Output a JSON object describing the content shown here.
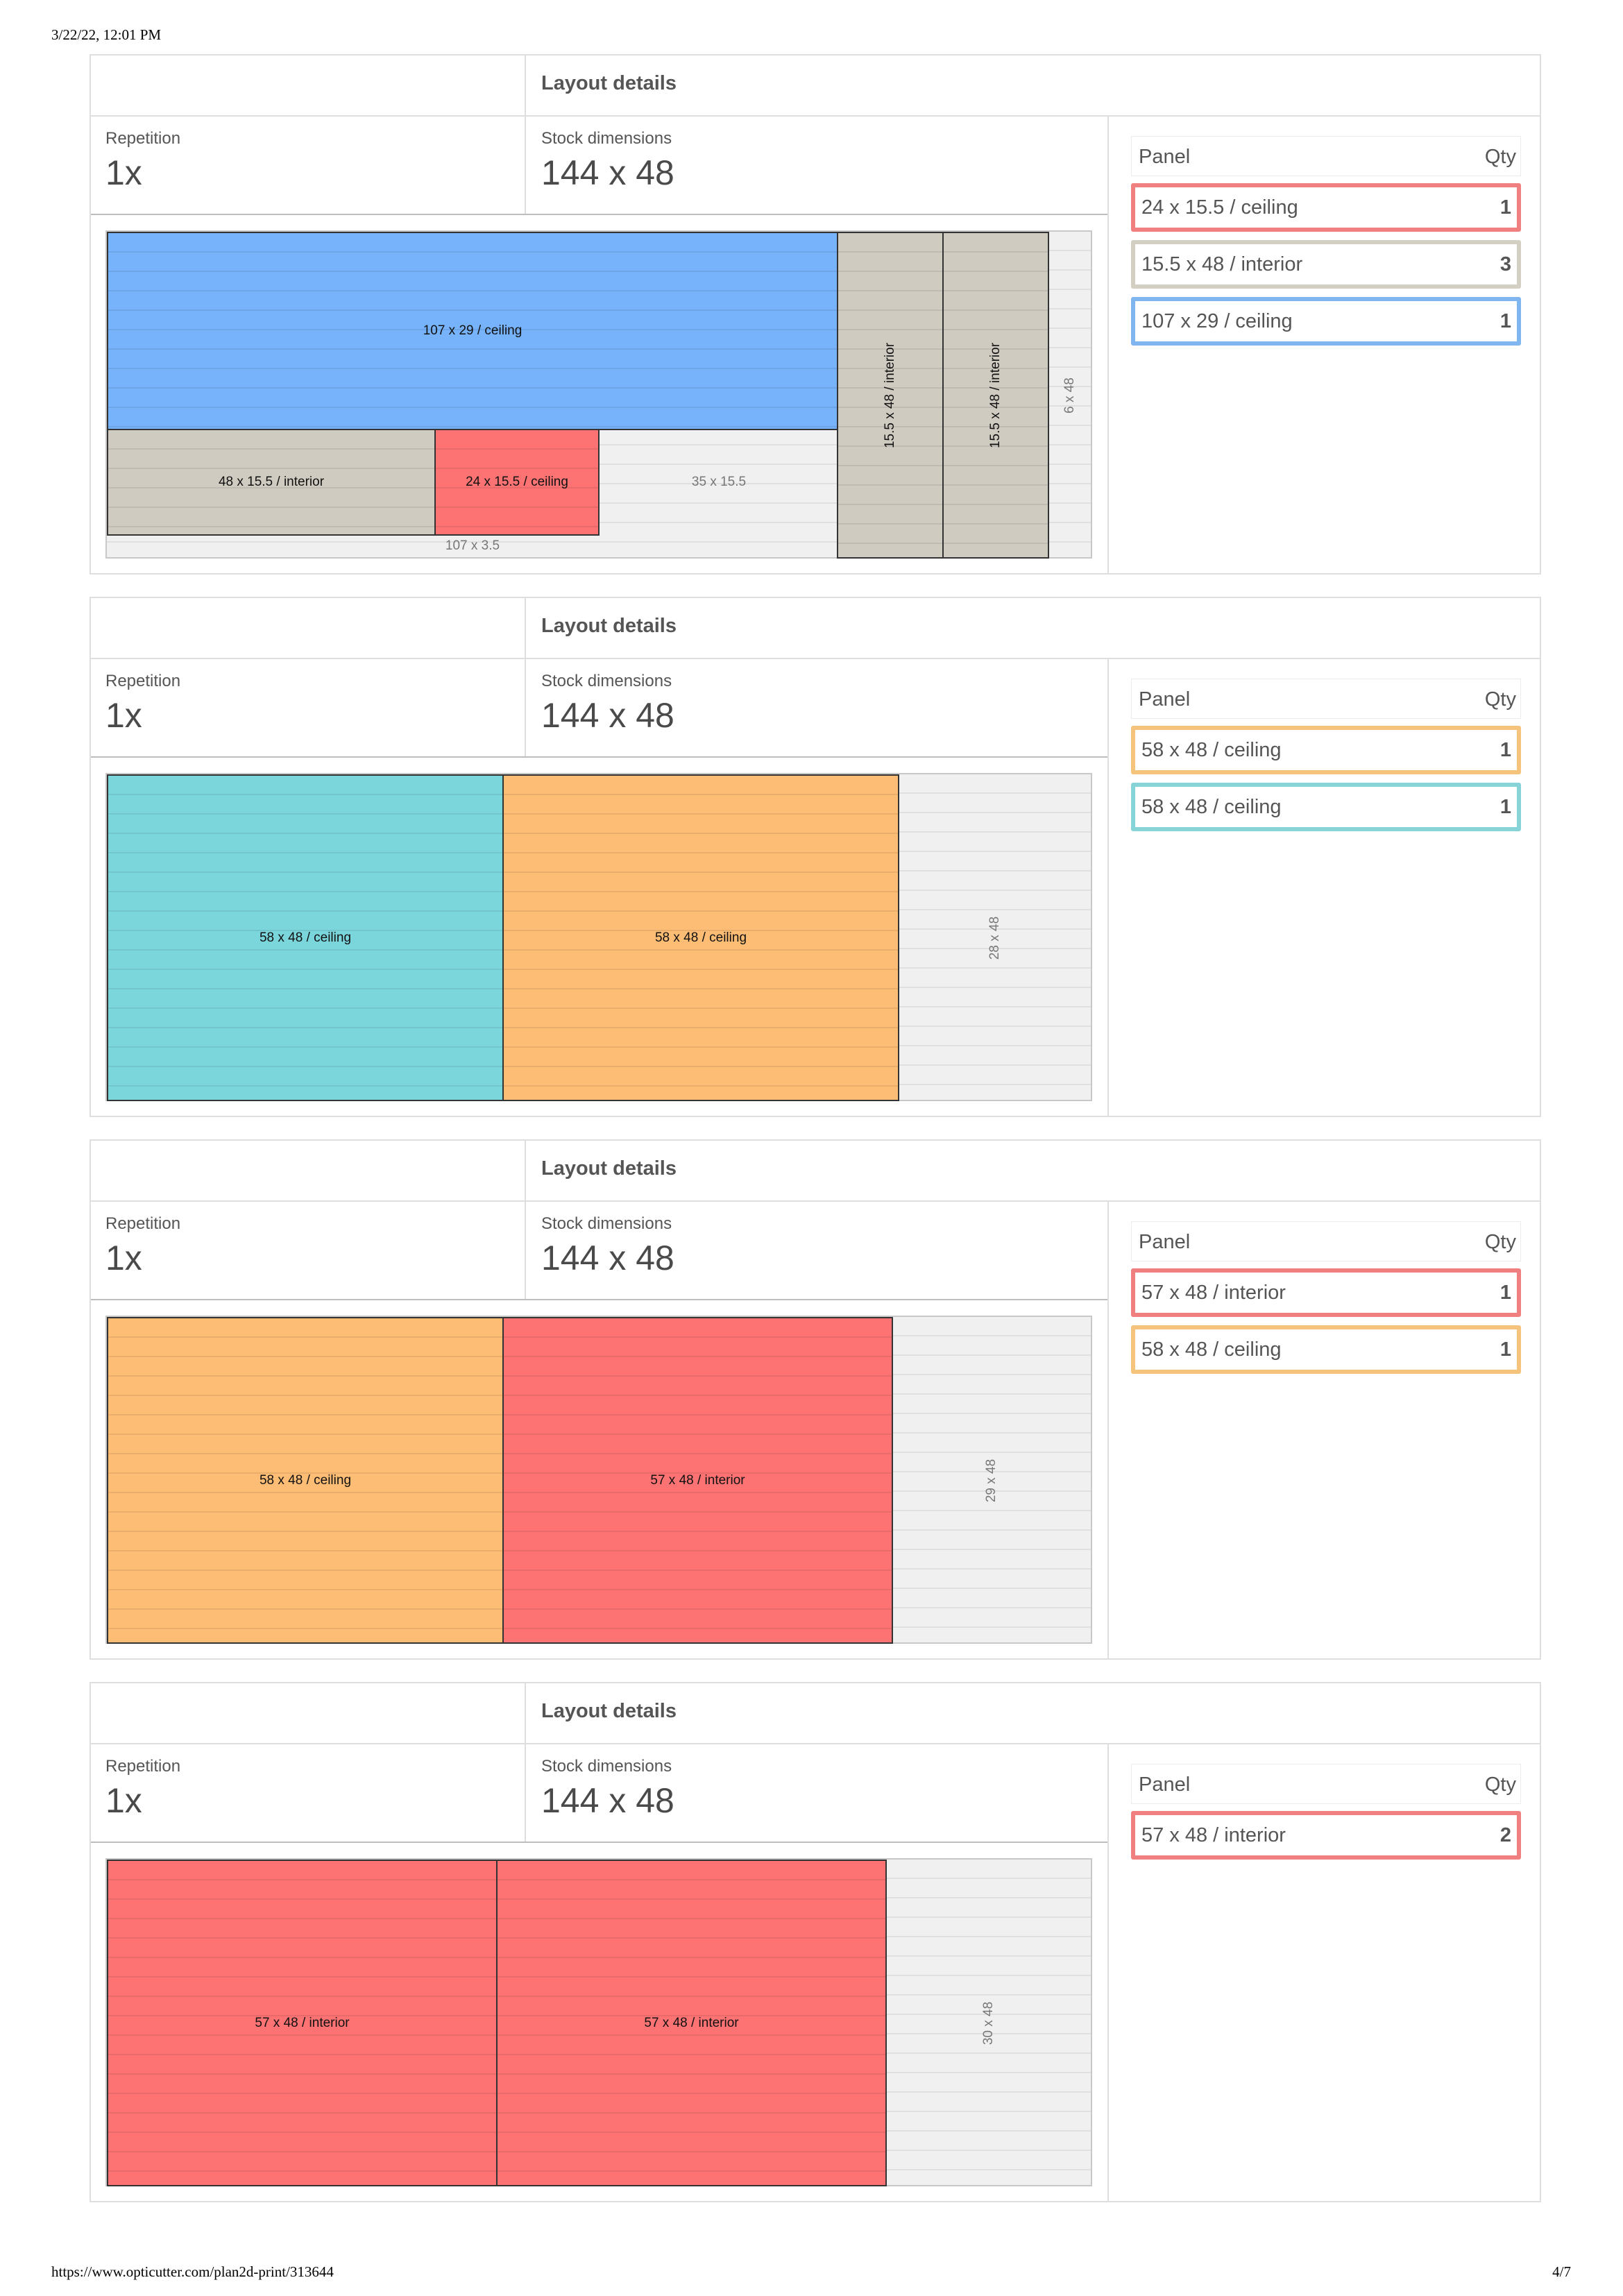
{
  "print_header": "3/22/22, 12:01 PM",
  "print_footer": {
    "url": "https://www.opticutter.com/plan2d-print/313644",
    "page": "4/7"
  },
  "colors": {
    "blue": "#76b3fb",
    "gray": "#d0cbc1",
    "red": "#fd7373",
    "teal": "#7bd6dc",
    "orange": "#fdbd75"
  },
  "layouts": [
    {
      "title": "Layout details",
      "repetition_label": "Repetition",
      "repetition_value": "1x",
      "stock_label": "Stock dimensions",
      "stock_value": "144 x 48",
      "table": {
        "col_panel": "Panel",
        "col_qty": "Qty",
        "rows": [
          {
            "name": "24 x 15.5 / ceiling",
            "qty": "1",
            "color": "#f08080"
          },
          {
            "name": "15.5 x 48 / interior",
            "qty": "3",
            "color": "#d3cfc3"
          },
          {
            "name": "107 x 29 / ceiling",
            "qty": "1",
            "color": "#7fb6f0"
          }
        ]
      },
      "pieces": {
        "p1": "107 x 29 / ceiling",
        "p2": "48 x 15.5 / interior",
        "p3": "24 x 15.5 / ceiling",
        "w1": "35 x 15.5",
        "w2": "107 x 3.5",
        "p4": "15.5 x 48 / interior",
        "p5": "15.5 x 48 / interior",
        "w3": "6 x 48"
      }
    },
    {
      "title": "Layout details",
      "repetition_label": "Repetition",
      "repetition_value": "1x",
      "stock_label": "Stock dimensions",
      "stock_value": "144 x 48",
      "table": {
        "col_panel": "Panel",
        "col_qty": "Qty",
        "rows": [
          {
            "name": "58 x 48 / ceiling",
            "qty": "1",
            "color": "#f5c37c"
          },
          {
            "name": "58 x 48 / ceiling",
            "qty": "1",
            "color": "#86d3d8"
          }
        ]
      },
      "pieces": {
        "p1": "58 x 48 / ceiling",
        "p2": "58 x 48 / ceiling",
        "w1": "28 x 48"
      }
    },
    {
      "title": "Layout details",
      "repetition_label": "Repetition",
      "repetition_value": "1x",
      "stock_label": "Stock dimensions",
      "stock_value": "144 x 48",
      "table": {
        "col_panel": "Panel",
        "col_qty": "Qty",
        "rows": [
          {
            "name": "57 x 48 / interior",
            "qty": "1",
            "color": "#f08080"
          },
          {
            "name": "58 x 48 / ceiling",
            "qty": "1",
            "color": "#f5c37c"
          }
        ]
      },
      "pieces": {
        "p1": "58 x 48 / ceiling",
        "p2": "57 x 48 / interior",
        "w1": "29 x 48"
      }
    },
    {
      "title": "Layout details",
      "repetition_label": "Repetition",
      "repetition_value": "1x",
      "stock_label": "Stock dimensions",
      "stock_value": "144 x 48",
      "table": {
        "col_panel": "Panel",
        "col_qty": "Qty",
        "rows": [
          {
            "name": "57 x 48 / interior",
            "qty": "2",
            "color": "#f08080"
          }
        ]
      },
      "pieces": {
        "p1": "57 x 48 / interior",
        "p2": "57 x 48 / interior",
        "w1": "30 x 48"
      }
    }
  ]
}
